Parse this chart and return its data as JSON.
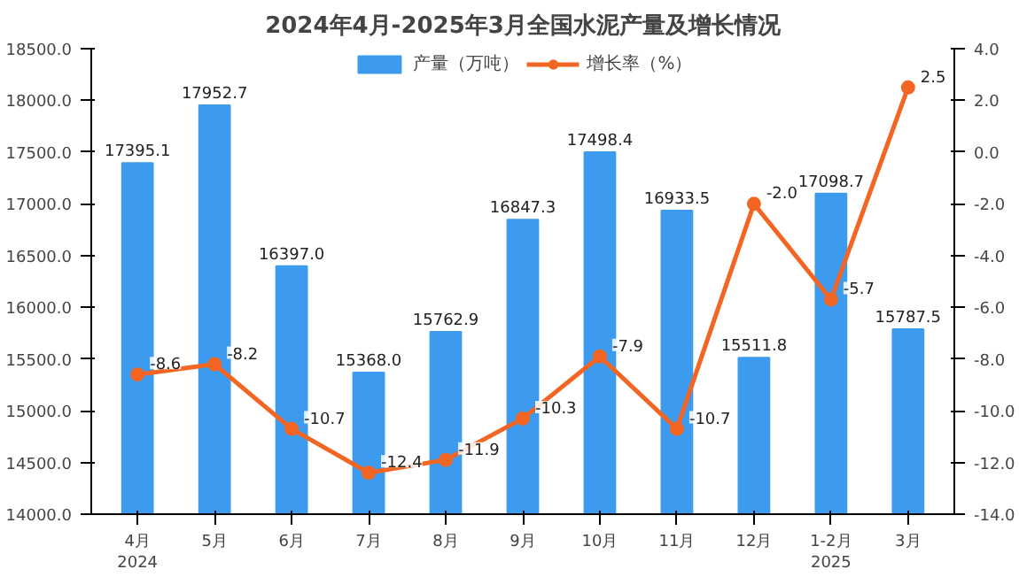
{
  "chart_data": {
    "type": "bar",
    "title": "2024年4月-2025年3月全国水泥产量及增长情况",
    "categories": [
      "4月\n2024",
      "5月",
      "6月",
      "7月",
      "8月",
      "9月",
      "10月",
      "11月",
      "12月",
      "1-2月\n2025",
      "3月"
    ],
    "series": [
      {
        "name": "产量（万吨）",
        "color": "#3d9bef",
        "values": [
          17395.1,
          17952.7,
          16397,
          15368,
          15762.9,
          16847.3,
          17498.4,
          16933.5,
          15511.8,
          17098.7,
          15787.5
        ],
        "value_labels": [
          "17395.1",
          "17952.7",
          "16397.0",
          "15368.0",
          "15762.9",
          "16847.3",
          "17498.4",
          "16933.5",
          "15511.8",
          "17098.7",
          "15787.5"
        ]
      },
      {
        "name": "增长率（%）",
        "type": "line",
        "axis": "y2",
        "color": "#f26522",
        "marker": "circle",
        "values": [
          -8.6,
          -8.2,
          -10.7,
          -12.4,
          -11.9,
          -10.3,
          -7.9,
          -10.7,
          -2,
          -5.7,
          2.5
        ],
        "value_labels": [
          "-8.6",
          "-8.2",
          "-10.7",
          "-12.4",
          "-11.9",
          "-10.3",
          "-7.9",
          "-10.7",
          "-2.0",
          "-5.7",
          "2.5"
        ]
      }
    ],
    "ylim": [
      14000,
      18500
    ],
    "yticks": [
      {
        "value": 14000,
        "label": "14000.0"
      },
      {
        "value": 14500,
        "label": "14500.0"
      },
      {
        "value": 15000,
        "label": "15000.0"
      },
      {
        "value": 15500,
        "label": "15500.0"
      },
      {
        "value": 16000,
        "label": "16000.0"
      },
      {
        "value": 16500,
        "label": "16500.0"
      },
      {
        "value": 17000,
        "label": "17000.0"
      },
      {
        "value": 17500,
        "label": "17500.0"
      },
      {
        "value": 18000,
        "label": "18000.0"
      },
      {
        "value": 18500,
        "label": "18500.0"
      }
    ],
    "y2lim": [
      -14,
      4
    ],
    "y2ticks": [
      {
        "value": -14,
        "label": "-14.0"
      },
      {
        "value": -12,
        "label": "-12.0"
      },
      {
        "value": -10,
        "label": "-10.0"
      },
      {
        "value": -8,
        "label": "-8.0"
      },
      {
        "value": -6,
        "label": "-6.0"
      },
      {
        "value": -4,
        "label": "-4.0"
      },
      {
        "value": -2,
        "label": "-2.0"
      },
      {
        "value": 0,
        "label": "0.0"
      },
      {
        "value": 2,
        "label": "2.0"
      },
      {
        "value": 4,
        "label": "4.0"
      }
    ],
    "legend": "top",
    "grid": false
  }
}
